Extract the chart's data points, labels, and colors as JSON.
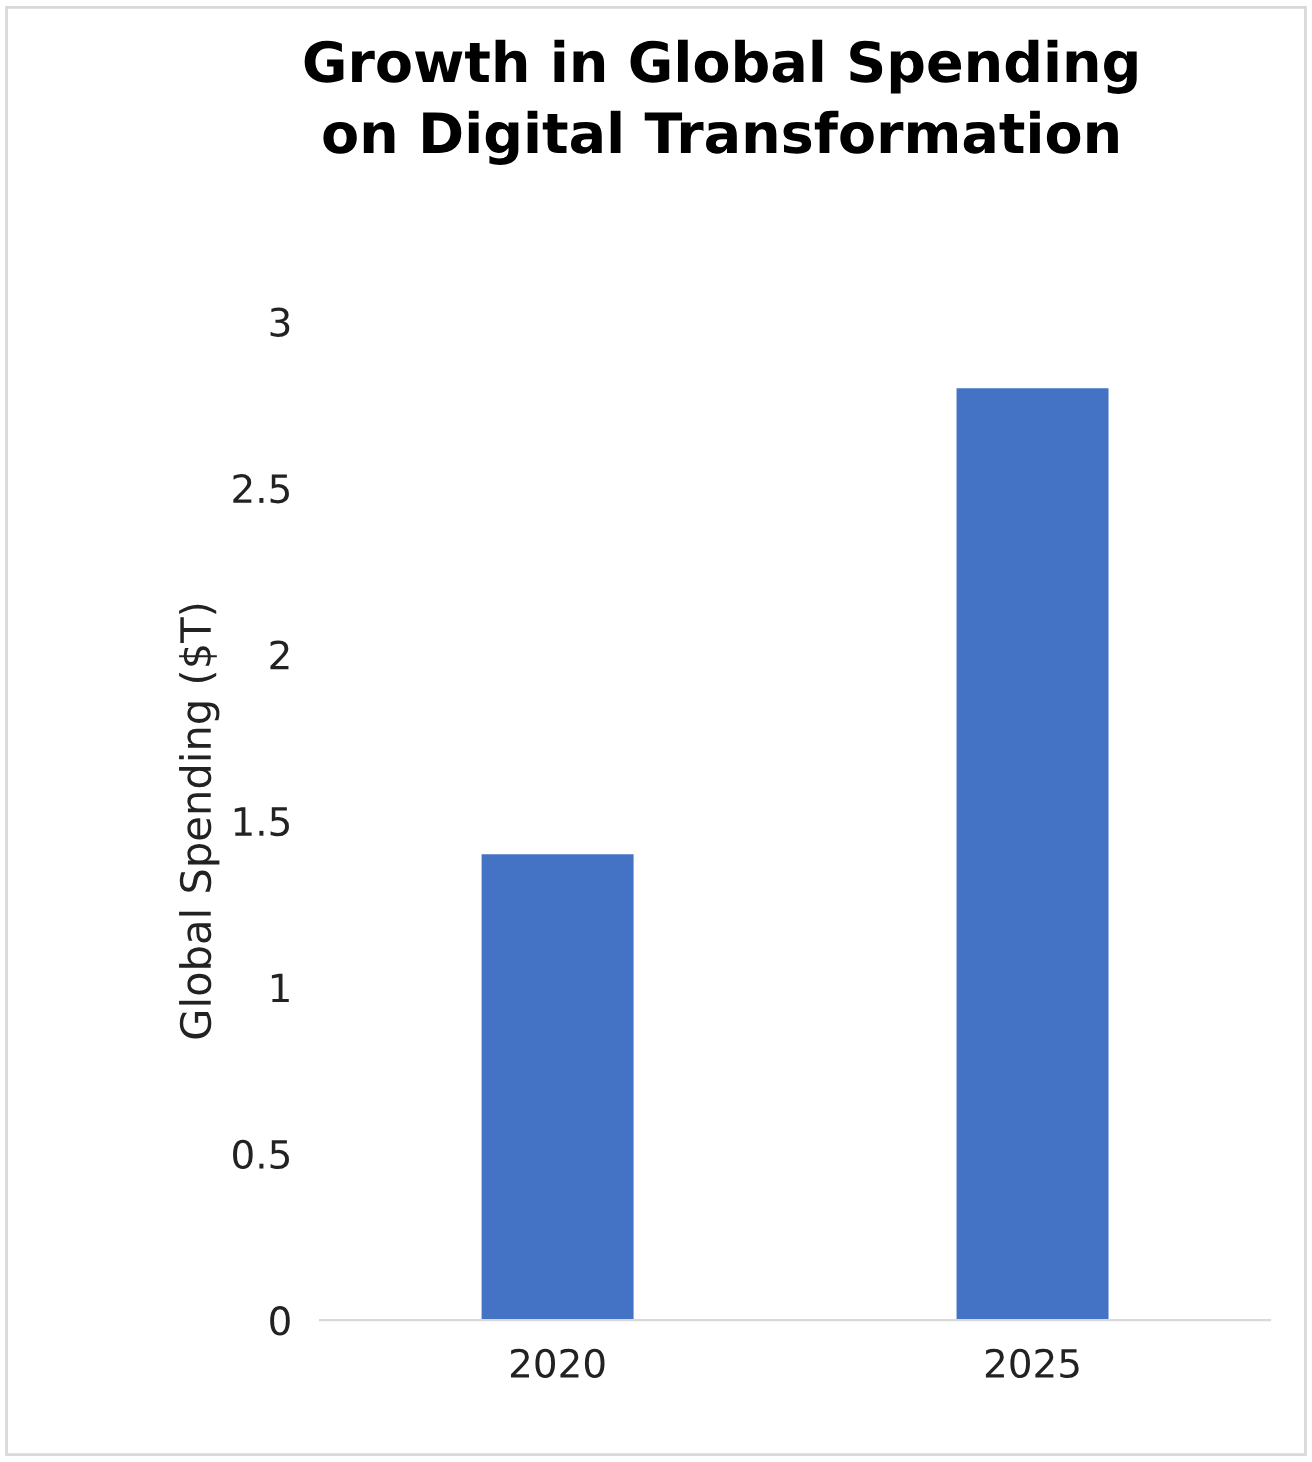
{
  "chart_data": {
    "type": "bar",
    "title": "Growth in Global Spending\non Digital Transformation",
    "ylabel": "Global Spending ($T)",
    "categories": [
      "2020",
      "2025"
    ],
    "values": [
      1.4,
      2.8
    ],
    "color": "#4472c4",
    "ylim": [
      0,
      3
    ],
    "yticks": [
      0,
      0.5,
      1,
      1.5,
      2,
      2.5,
      3
    ],
    "grid": false,
    "legend": false
  }
}
